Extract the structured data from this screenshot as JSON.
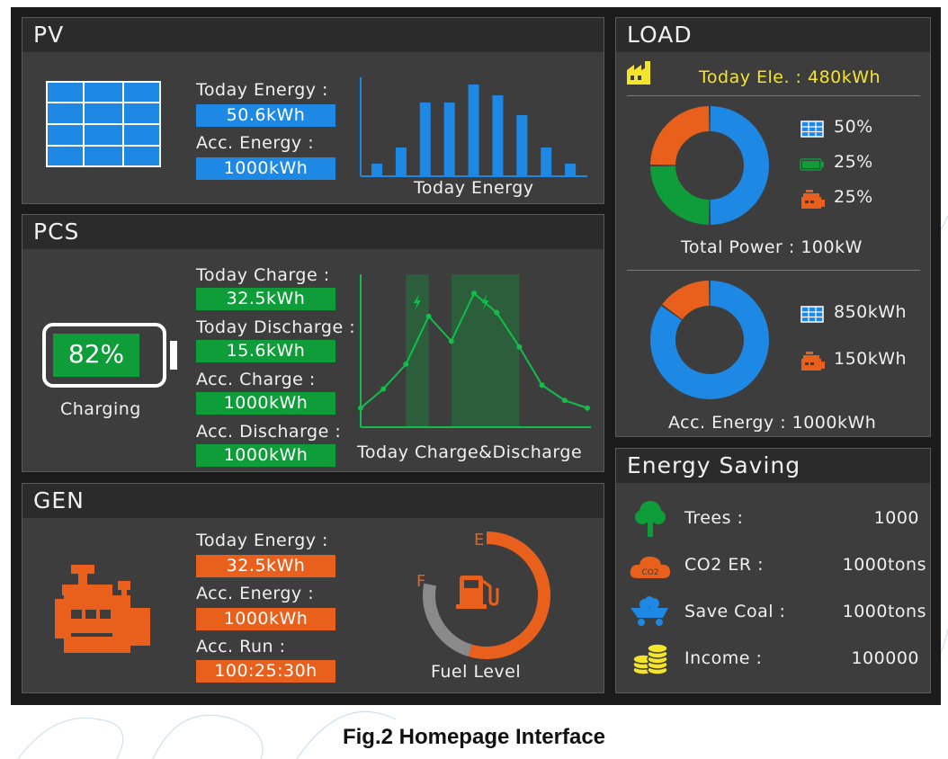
{
  "pv": {
    "title": "PV",
    "today_energy_label": "Today Energy :",
    "today_energy_value": "50.6kWh",
    "acc_energy_label": "Acc. Energy :",
    "acc_energy_value": "1000kWh",
    "chart_title": "Today Energy"
  },
  "pcs": {
    "title": "PCS",
    "battery_percent": "82%",
    "battery_status": "Charging",
    "today_charge_label": "Today Charge :",
    "today_charge_value": "32.5kWh",
    "today_discharge_label": "Today Discharge :",
    "today_discharge_value": "15.6kWh",
    "acc_charge_label": "Acc. Charge :",
    "acc_charge_value": "1000kWh",
    "acc_discharge_label": "Acc. Discharge :",
    "acc_discharge_value": "1000kWh",
    "chart_title": "Today Charge&Discharge"
  },
  "gen": {
    "title": "GEN",
    "today_energy_label": "Today Energy :",
    "today_energy_value": "32.5kWh",
    "acc_energy_label": "Acc. Energy :",
    "acc_energy_value": "1000kWh",
    "acc_run_label": "Acc. Run :",
    "acc_run_value": "100:25:30h",
    "fuel_label": "Fuel Level",
    "fuel_empty_marker": "E",
    "fuel_full_marker": "F",
    "fuel_level_fraction": 0.7
  },
  "load": {
    "title": "LOAD",
    "today_ele": "Today Ele. : 480kWh",
    "donut1": {
      "footer": "Total Power : 100kW",
      "items": [
        {
          "icon": "solar-panel-icon",
          "label": "50%",
          "value": 50,
          "color": "#1e88e5"
        },
        {
          "icon": "battery-icon",
          "label": "25%",
          "value": 25,
          "color": "#0f9d3a"
        },
        {
          "icon": "generator-icon",
          "label": "25%",
          "value": 25,
          "color": "#e8601c"
        }
      ]
    },
    "donut2": {
      "footer": "Acc. Energy : 1000kWh",
      "items": [
        {
          "icon": "solar-panel-icon",
          "label": "850kWh",
          "value": 850,
          "color": "#1e88e5"
        },
        {
          "icon": "generator-icon",
          "label": "150kWh",
          "value": 150,
          "color": "#e8601c"
        }
      ]
    }
  },
  "saving": {
    "title": "Energy Saving",
    "items": [
      {
        "icon": "tree-icon",
        "label": "Trees :",
        "value": "1000"
      },
      {
        "icon": "co2-cloud-icon",
        "label": "CO2 ER :",
        "value": "1000tons",
        "icon_text": "CO2"
      },
      {
        "icon": "coal-cart-icon",
        "label": "Save Coal :",
        "value": "1000tons"
      },
      {
        "icon": "coins-icon",
        "label": "Income :",
        "value": "100000"
      }
    ]
  },
  "caption": "Fig.2 Homepage Interface",
  "colors": {
    "blue": "#1e88e5",
    "green": "#0f9d3a",
    "orange": "#e8601c",
    "yellow": "#f5e52a",
    "panel": "#3d3d3d",
    "header": "#2b2b2b"
  },
  "chart_data": [
    {
      "type": "bar",
      "title": "Today Energy",
      "categories": [
        "1",
        "2",
        "3",
        "4",
        "5",
        "6",
        "7",
        "8",
        "9"
      ],
      "values": [
        14,
        32,
        82,
        82,
        102,
        90,
        68,
        32,
        14
      ],
      "ylim": [
        0,
        110
      ],
      "color": "#1e88e5"
    },
    {
      "type": "line",
      "title": "Today Charge&Discharge",
      "x": [
        0,
        1,
        2,
        3,
        4,
        5,
        6,
        7,
        8,
        9,
        10
      ],
      "values": [
        10,
        20,
        33,
        58,
        45,
        70,
        60,
        42,
        22,
        14,
        10
      ],
      "ylim": [
        0,
        80
      ],
      "highlight_ranges": [
        [
          2,
          3
        ],
        [
          4,
          7
        ]
      ],
      "color": "#0fbf4a"
    }
  ]
}
